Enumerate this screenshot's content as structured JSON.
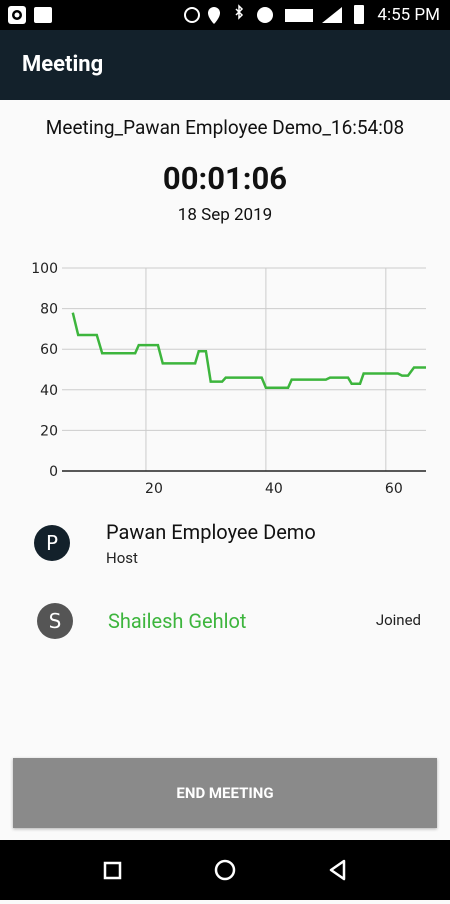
{
  "status_bar": {
    "time": "4:55 PM"
  },
  "app_bar": {
    "title": "Meeting"
  },
  "meeting": {
    "name": "Meeting_Pawan Employee Demo_16:54:08",
    "duration": "00:01:06",
    "date": "18 Sep 2019"
  },
  "chart_data": {
    "type": "line",
    "x": [
      7.8,
      8.7,
      11.8,
      12.7,
      18.2,
      18.8,
      22,
      22.8,
      28.2,
      28.8,
      30,
      30.8,
      32.7,
      33.3,
      39.3,
      40,
      43.7,
      44.3,
      50,
      50.7,
      53.7,
      54.3,
      55.7,
      56.3,
      62,
      62.7,
      63.7,
      64.7,
      66.7
    ],
    "values": [
      78,
      67,
      67,
      58,
      58,
      62,
      62,
      53,
      53,
      59,
      59,
      44,
      44,
      46,
      46,
      41,
      41,
      45,
      45,
      46,
      46,
      43,
      43,
      48,
      48,
      47,
      47,
      51,
      51
    ],
    "color": "#3db53d",
    "xlim": [
      6,
      66.7
    ],
    "xticks": [
      20,
      40,
      60
    ],
    "ylim": [
      0,
      100
    ],
    "yticks": [
      0,
      20,
      40,
      60,
      80,
      100
    ],
    "grid": true
  },
  "participants": [
    {
      "initial": "P",
      "name": "Pawan Employee Demo",
      "role": "Host"
    },
    {
      "initial": "S",
      "name": "Shailesh Gehlot",
      "status": "Joined"
    }
  ],
  "button": {
    "label": "END MEETING"
  }
}
